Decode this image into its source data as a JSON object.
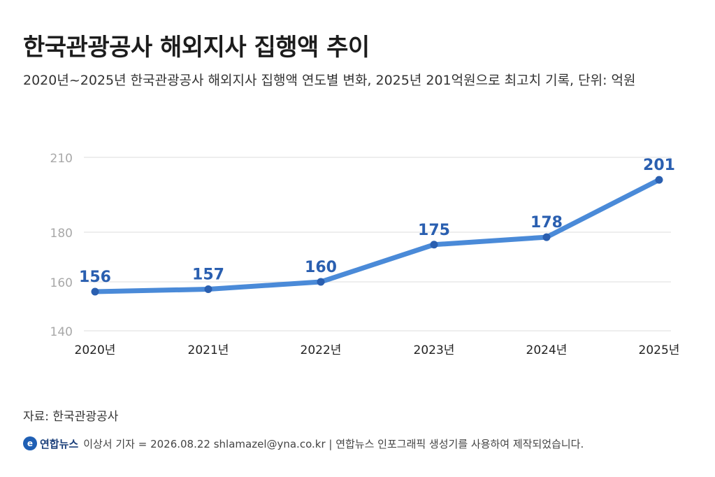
{
  "header": {
    "title": "한국관광공사 해외지사 집행액 추이",
    "subtitle": "2020년~2025년 한국관광공사 해외지사 집행액 연도별 변화, 2025년 201억원으로 최고치 기록, 단위: 억원"
  },
  "chart_data": {
    "type": "line",
    "categories": [
      "2020년",
      "2021년",
      "2022년",
      "2023년",
      "2024년",
      "2025년"
    ],
    "series": [
      {
        "values": [
          156,
          157,
          160,
          175,
          178,
          201
        ]
      }
    ],
    "data_labels": [
      "156",
      "157",
      "160",
      "175",
      "178",
      "201"
    ],
    "y_ticks": [
      140,
      160,
      180,
      210
    ],
    "y_tick_labels": [
      "140",
      "160",
      "180",
      "210"
    ],
    "ylim": [
      140,
      210
    ],
    "grid": true,
    "legend": "none",
    "colors": {
      "line": "#4a8ad8",
      "point": "#2a5fb0",
      "label": "#2a5fb0",
      "grid": "#dcdcdc",
      "tick": "#a8a8a8"
    }
  },
  "source": "자료: 한국관광공사",
  "footer": {
    "logo_icon": "yonhap-logo-icon",
    "logo_glyph": "e",
    "brand": "연합뉴스",
    "credit": "이상서 기자 = 2026.08.22 shlamazel@yna.co.kr | 연합뉴스 인포그래픽 생성기를 사용하여 제작되었습니다."
  }
}
